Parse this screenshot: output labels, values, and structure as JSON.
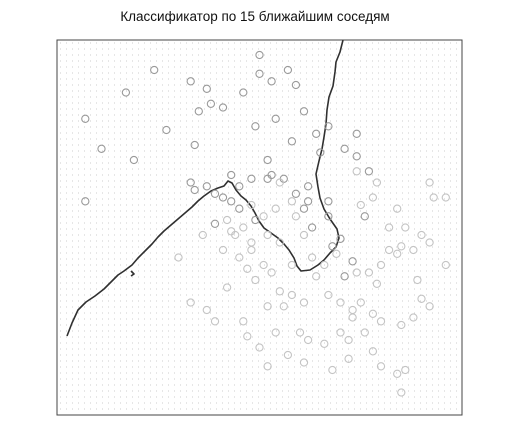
{
  "chart_data": {
    "type": "scatter",
    "title": "Классификатор по 15 ближайшим соседям",
    "xlabel": "",
    "ylabel": "",
    "xlim": [
      0,
      100
    ],
    "ylim": [
      0,
      100
    ],
    "grid": false,
    "legend": "none",
    "background": "dotted class-region grid",
    "colors": {
      "points_class_a": "#9a9a9a",
      "points_class_b": "#c4c4c4",
      "boundary": "#303030",
      "region_dots": "#c9c9c9",
      "frame": "#444444"
    },
    "series": [
      {
        "values": [
          [
            24,
            92
          ],
          [
            17,
            86
          ],
          [
            33,
            89
          ],
          [
            7,
            79
          ],
          [
            11,
            71
          ],
          [
            19,
            68
          ],
          [
            27,
            76
          ],
          [
            34,
            72
          ],
          [
            38,
            83
          ],
          [
            37,
            87
          ],
          [
            41,
            82
          ],
          [
            46,
            86
          ],
          [
            50,
            96
          ],
          [
            50,
            91
          ],
          [
            53,
            89
          ],
          [
            57,
            92
          ],
          [
            59,
            88
          ],
          [
            49,
            77
          ],
          [
            54,
            79
          ],
          [
            58,
            73
          ],
          [
            61,
            81
          ],
          [
            64,
            75
          ],
          [
            67,
            77
          ],
          [
            65,
            70
          ],
          [
            71,
            71
          ],
          [
            74,
            69
          ],
          [
            77,
            65
          ],
          [
            56,
            63
          ],
          [
            59,
            59
          ],
          [
            61,
            55
          ],
          [
            63,
            50
          ],
          [
            67,
            53
          ],
          [
            70,
            47
          ],
          [
            73,
            41
          ],
          [
            71,
            37
          ],
          [
            68,
            45
          ],
          [
            76,
            53
          ],
          [
            52,
            63
          ],
          [
            48,
            63
          ],
          [
            45,
            61
          ],
          [
            33,
            62
          ],
          [
            37,
            61
          ],
          [
            39,
            59
          ],
          [
            41,
            58
          ],
          [
            43,
            57
          ],
          [
            45,
            55
          ],
          [
            49,
            52
          ],
          [
            39,
            51
          ],
          [
            52,
            68
          ],
          [
            43,
            64
          ],
          [
            34,
            60
          ],
          [
            7,
            57
          ],
          [
            53,
            64
          ],
          [
            74,
            75
          ],
          [
            67,
            57
          ],
          [
            62,
            57
          ],
          [
            35,
            81
          ],
          [
            62,
            61
          ]
        ]
      },
      {
        "values": [
          [
            74,
            65
          ],
          [
            84,
            55
          ],
          [
            86,
            50
          ],
          [
            88,
            44
          ],
          [
            92,
            62
          ],
          [
            93,
            58
          ],
          [
            96,
            58
          ],
          [
            90,
            48
          ],
          [
            92,
            46
          ],
          [
            96,
            40
          ],
          [
            80,
            40
          ],
          [
            85,
            45
          ],
          [
            78,
            58
          ],
          [
            82,
            50
          ],
          [
            75,
            56
          ],
          [
            79,
            62
          ],
          [
            55,
            62
          ],
          [
            58,
            57
          ],
          [
            59,
            53
          ],
          [
            61,
            48
          ],
          [
            63,
            42
          ],
          [
            66,
            40
          ],
          [
            69,
            43
          ],
          [
            74,
            38
          ],
          [
            77,
            38
          ],
          [
            79,
            35
          ],
          [
            82,
            44
          ],
          [
            84,
            43
          ],
          [
            89,
            36
          ],
          [
            90,
            31
          ],
          [
            92,
            29
          ],
          [
            75,
            30
          ],
          [
            78,
            27
          ],
          [
            70,
            22
          ],
          [
            72,
            20
          ],
          [
            66,
            19
          ],
          [
            60,
            22
          ],
          [
            62,
            20
          ],
          [
            56,
            29
          ],
          [
            58,
            32
          ],
          [
            55,
            33
          ],
          [
            52,
            29
          ],
          [
            49,
            36
          ],
          [
            47,
            39
          ],
          [
            45,
            42
          ],
          [
            41,
            44
          ],
          [
            43,
            49
          ],
          [
            48,
            46
          ],
          [
            51,
            40
          ],
          [
            53,
            38
          ],
          [
            30,
            42
          ],
          [
            33,
            30
          ],
          [
            37,
            28
          ],
          [
            39,
            25
          ],
          [
            42,
            34
          ],
          [
            46,
            25
          ],
          [
            47,
            21
          ],
          [
            50,
            18
          ],
          [
            52,
            13
          ],
          [
            54,
            22
          ],
          [
            57,
            16
          ],
          [
            61,
            14
          ],
          [
            68,
            12
          ],
          [
            72,
            15
          ],
          [
            78,
            17
          ],
          [
            80,
            13
          ],
          [
            84,
            11
          ],
          [
            86,
            12
          ],
          [
            70,
            30
          ],
          [
            73,
            26
          ],
          [
            76,
            22
          ],
          [
            80,
            25
          ],
          [
            85,
            24
          ],
          [
            88,
            26
          ],
          [
            42,
            52
          ],
          [
            44,
            48
          ],
          [
            48,
            56
          ],
          [
            52,
            48
          ],
          [
            46,
            50
          ],
          [
            36,
            48
          ],
          [
            55,
            46
          ],
          [
            67,
            32
          ],
          [
            73,
            28
          ],
          [
            85,
            6
          ],
          [
            64,
            37
          ],
          [
            58,
            40
          ],
          [
            61,
            30
          ],
          [
            54,
            55
          ],
          [
            51,
            53
          ],
          [
            48,
            44
          ]
        ]
      }
    ]
  }
}
